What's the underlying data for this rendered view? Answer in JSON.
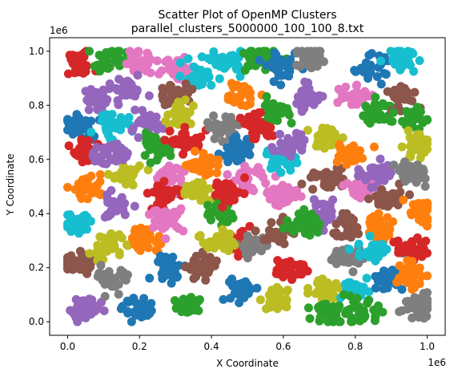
{
  "chart_data": {
    "type": "scatter",
    "title": "Scatter Plot of OpenMP Clusters",
    "subtitle": "parallel_clusters_5000000_100_100_8.txt",
    "xlabel": "X Coordinate",
    "ylabel": "Y Coordinate",
    "x_offset_label": "1e6",
    "y_offset_label": "1e6",
    "xlim": [
      -0.05,
      1.05
    ],
    "ylim": [
      -0.05,
      1.05
    ],
    "x_ticks": [
      0.0,
      0.2,
      0.4,
      0.6,
      0.8,
      1.0
    ],
    "x_tick_labels": [
      "0.0",
      "0.2",
      "0.4",
      "0.6",
      "0.8",
      "1.0"
    ],
    "y_ticks": [
      0.0,
      0.2,
      0.4,
      0.6,
      0.8,
      1.0
    ],
    "y_tick_labels": [
      "0.0",
      "0.2",
      "0.4",
      "0.6",
      "0.8",
      "1.0"
    ],
    "grid": false,
    "legend": "none",
    "palette": [
      "#1f77b4",
      "#ff7f0e",
      "#2ca02c",
      "#d62728",
      "#9467bd",
      "#8c564b",
      "#e377c2",
      "#7f7f7f",
      "#bcbd22",
      "#17becf"
    ],
    "clusters": [
      {
        "cx": 0.03,
        "cy": 0.95,
        "color": "#d62728"
      },
      {
        "cx": 0.09,
        "cy": 0.82,
        "color": "#9467bd"
      },
      {
        "cx": 0.03,
        "cy": 0.72,
        "color": "#1f77b4"
      },
      {
        "cx": 0.06,
        "cy": 0.63,
        "color": "#d62728"
      },
      {
        "cx": 0.06,
        "cy": 0.5,
        "color": "#ff7f0e"
      },
      {
        "cx": 0.03,
        "cy": 0.37,
        "color": "#17becf"
      },
      {
        "cx": 0.02,
        "cy": 0.22,
        "color": "#8c564b"
      },
      {
        "cx": 0.05,
        "cy": 0.05,
        "color": "#9467bd"
      },
      {
        "cx": 0.12,
        "cy": 0.97,
        "color": "#2ca02c"
      },
      {
        "cx": 0.2,
        "cy": 0.96,
        "color": "#e377c2"
      },
      {
        "cx": 0.17,
        "cy": 0.86,
        "color": "#9467bd"
      },
      {
        "cx": 0.12,
        "cy": 0.73,
        "color": "#17becf"
      },
      {
        "cx": 0.16,
        "cy": 0.54,
        "color": "#bcbd22"
      },
      {
        "cx": 0.13,
        "cy": 0.42,
        "color": "#9467bd"
      },
      {
        "cx": 0.11,
        "cy": 0.28,
        "color": "#bcbd22"
      },
      {
        "cx": 0.13,
        "cy": 0.16,
        "color": "#7f7f7f"
      },
      {
        "cx": 0.22,
        "cy": 0.3,
        "color": "#ff7f0e"
      },
      {
        "cx": 0.2,
        "cy": 0.04,
        "color": "#1f77b4"
      },
      {
        "cx": 0.22,
        "cy": 0.72,
        "color": "#9467bd"
      },
      {
        "cx": 0.24,
        "cy": 0.64,
        "color": "#2ca02c"
      },
      {
        "cx": 0.28,
        "cy": 0.53,
        "color": "#e377c2"
      },
      {
        "cx": 0.27,
        "cy": 0.47,
        "color": "#d62728"
      },
      {
        "cx": 0.28,
        "cy": 0.38,
        "color": "#e377c2"
      },
      {
        "cx": 0.28,
        "cy": 0.2,
        "color": "#1f77b4"
      },
      {
        "cx": 0.34,
        "cy": 0.06,
        "color": "#2ca02c"
      },
      {
        "cx": 0.31,
        "cy": 0.94,
        "color": "#e377c2"
      },
      {
        "cx": 0.36,
        "cy": 0.91,
        "color": "#17becf"
      },
      {
        "cx": 0.3,
        "cy": 0.84,
        "color": "#8c564b"
      },
      {
        "cx": 0.32,
        "cy": 0.76,
        "color": "#bcbd22"
      },
      {
        "cx": 0.33,
        "cy": 0.67,
        "color": "#d62728"
      },
      {
        "cx": 0.36,
        "cy": 0.48,
        "color": "#bcbd22"
      },
      {
        "cx": 0.38,
        "cy": 0.2,
        "color": "#8c564b"
      },
      {
        "cx": 0.44,
        "cy": 0.96,
        "color": "#17becf"
      },
      {
        "cx": 0.48,
        "cy": 0.84,
        "color": "#ff7f0e"
      },
      {
        "cx": 0.43,
        "cy": 0.72,
        "color": "#7f7f7f"
      },
      {
        "cx": 0.47,
        "cy": 0.63,
        "color": "#1f77b4"
      },
      {
        "cx": 0.5,
        "cy": 0.53,
        "color": "#e377c2"
      },
      {
        "cx": 0.42,
        "cy": 0.4,
        "color": "#2ca02c"
      },
      {
        "cx": 0.48,
        "cy": 0.28,
        "color": "#d62728"
      },
      {
        "cx": 0.52,
        "cy": 0.28,
        "color": "#7f7f7f"
      },
      {
        "cx": 0.48,
        "cy": 0.12,
        "color": "#1f77b4"
      },
      {
        "cx": 0.53,
        "cy": 0.97,
        "color": "#2ca02c"
      },
      {
        "cx": 0.57,
        "cy": 0.78,
        "color": "#2ca02c"
      },
      {
        "cx": 0.53,
        "cy": 0.72,
        "color": "#d62728"
      },
      {
        "cx": 0.59,
        "cy": 0.6,
        "color": "#17becf"
      },
      {
        "cx": 0.6,
        "cy": 0.47,
        "color": "#e377c2"
      },
      {
        "cx": 0.59,
        "cy": 0.33,
        "color": "#8c564b"
      },
      {
        "cx": 0.62,
        "cy": 0.2,
        "color": "#d62728"
      },
      {
        "cx": 0.58,
        "cy": 0.08,
        "color": "#bcbd22"
      },
      {
        "cx": 0.6,
        "cy": 0.94,
        "color": "#1f77b4"
      },
      {
        "cx": 0.68,
        "cy": 0.97,
        "color": "#7f7f7f"
      },
      {
        "cx": 0.67,
        "cy": 0.83,
        "color": "#9467bd"
      },
      {
        "cx": 0.72,
        "cy": 0.68,
        "color": "#bcbd22"
      },
      {
        "cx": 0.72,
        "cy": 0.53,
        "color": "#8c564b"
      },
      {
        "cx": 0.71,
        "cy": 0.4,
        "color": "#9467bd"
      },
      {
        "cx": 0.72,
        "cy": 0.12,
        "color": "#bcbd22"
      },
      {
        "cx": 0.73,
        "cy": 0.04,
        "color": "#2ca02c"
      },
      {
        "cx": 0.79,
        "cy": 0.84,
        "color": "#e377c2"
      },
      {
        "cx": 0.78,
        "cy": 0.62,
        "color": "#ff7f0e"
      },
      {
        "cx": 0.81,
        "cy": 0.49,
        "color": "#e377c2"
      },
      {
        "cx": 0.78,
        "cy": 0.35,
        "color": "#8c564b"
      },
      {
        "cx": 0.78,
        "cy": 0.24,
        "color": "#7f7f7f"
      },
      {
        "cx": 0.81,
        "cy": 0.12,
        "color": "#17becf"
      },
      {
        "cx": 0.82,
        "cy": 0.03,
        "color": "#2ca02c"
      },
      {
        "cx": 0.84,
        "cy": 0.94,
        "color": "#1f77b4"
      },
      {
        "cx": 0.86,
        "cy": 0.78,
        "color": "#2ca02c"
      },
      {
        "cx": 0.86,
        "cy": 0.55,
        "color": "#9467bd"
      },
      {
        "cx": 0.89,
        "cy": 0.45,
        "color": "#8c564b"
      },
      {
        "cx": 0.86,
        "cy": 0.35,
        "color": "#ff7f0e"
      },
      {
        "cx": 0.85,
        "cy": 0.26,
        "color": "#17becf"
      },
      {
        "cx": 0.89,
        "cy": 0.16,
        "color": "#1f77b4"
      },
      {
        "cx": 0.93,
        "cy": 0.98,
        "color": "#17becf"
      },
      {
        "cx": 0.93,
        "cy": 0.84,
        "color": "#8c564b"
      },
      {
        "cx": 0.96,
        "cy": 0.75,
        "color": "#2ca02c"
      },
      {
        "cx": 0.97,
        "cy": 0.65,
        "color": "#bcbd22"
      },
      {
        "cx": 0.96,
        "cy": 0.55,
        "color": "#7f7f7f"
      },
      {
        "cx": 0.98,
        "cy": 0.4,
        "color": "#ff7f0e"
      },
      {
        "cx": 0.96,
        "cy": 0.27,
        "color": "#d62728"
      },
      {
        "cx": 0.95,
        "cy": 0.17,
        "color": "#ff7f0e"
      },
      {
        "cx": 0.97,
        "cy": 0.06,
        "color": "#7f7f7f"
      },
      {
        "cx": 0.12,
        "cy": 0.62,
        "color": "#9467bd"
      },
      {
        "cx": 0.38,
        "cy": 0.58,
        "color": "#ff7f0e"
      },
      {
        "cx": 0.45,
        "cy": 0.48,
        "color": "#d62728"
      },
      {
        "cx": 0.62,
        "cy": 0.66,
        "color": "#9467bd"
      },
      {
        "cx": 0.66,
        "cy": 0.36,
        "color": "#2ca02c"
      },
      {
        "cx": 0.42,
        "cy": 0.3,
        "color": "#bcbd22"
      }
    ]
  }
}
